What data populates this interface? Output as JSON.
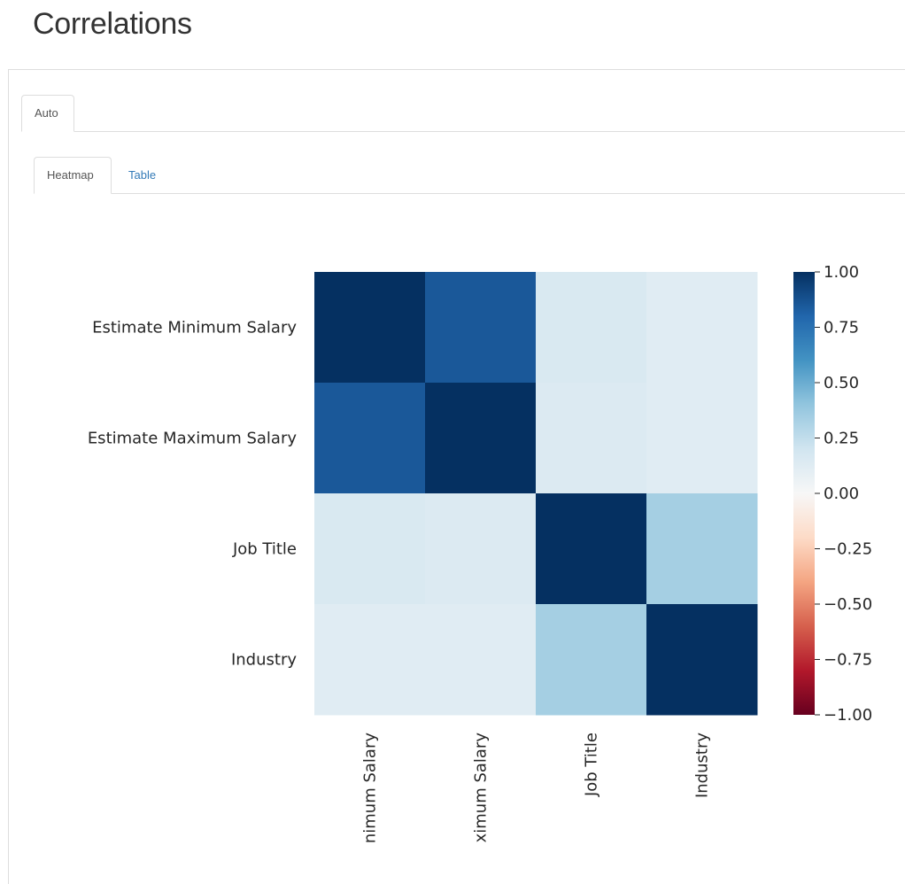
{
  "page": {
    "title": "Correlations"
  },
  "tabs_outer": [
    {
      "label": "Auto",
      "active": true
    }
  ],
  "tabs_inner": [
    {
      "label": "Heatmap",
      "active": true
    },
    {
      "label": "Table",
      "active": false
    }
  ],
  "colors": {
    "tab_link": "#337ab7",
    "border": "#dddddd",
    "title": "#333333"
  },
  "chart_data": {
    "type": "heatmap",
    "row_labels": [
      "Estimate Minimum Salary",
      "Estimate Maximum Salary",
      "Job Title",
      "Industry"
    ],
    "col_labels": [
      "nimum Salary",
      "ximum Salary",
      "Job Title",
      "Industry"
    ],
    "values": [
      [
        1.0,
        0.85,
        0.16,
        0.12
      ],
      [
        0.85,
        1.0,
        0.14,
        0.12
      ],
      [
        0.16,
        0.14,
        1.0,
        0.34
      ],
      [
        0.12,
        0.12,
        0.34,
        1.0
      ]
    ],
    "colormap": "RdBu",
    "vmin": -1.0,
    "vmax": 1.0,
    "colorbar_ticks": [
      {
        "value": 1.0,
        "label": "1.00"
      },
      {
        "value": 0.75,
        "label": "0.75"
      },
      {
        "value": 0.5,
        "label": "0.50"
      },
      {
        "value": 0.25,
        "label": "0.25"
      },
      {
        "value": 0.0,
        "label": "0.00"
      },
      {
        "value": -0.25,
        "label": "−0.25"
      },
      {
        "value": -0.5,
        "label": "−0.50"
      },
      {
        "value": -0.75,
        "label": "−0.75"
      },
      {
        "value": -1.0,
        "label": "−1.00"
      }
    ]
  }
}
